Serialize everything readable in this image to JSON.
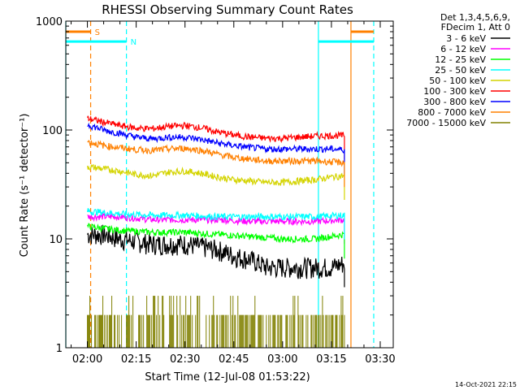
{
  "chart_data": {
    "type": "line",
    "title": "RHESSI Observing Summary Count Rates",
    "xlabel": "Start Time (12-Jul-08 01:53:22)",
    "ylabel": "Count Rate (s⁻¹ detector⁻¹)",
    "y_scale": "log",
    "ylim": [
      1,
      1000
    ],
    "y_ticks": [
      {
        "value": 1,
        "label": "1"
      },
      {
        "value": 10,
        "label": "10"
      },
      {
        "value": 100,
        "label": "100"
      },
      {
        "value": 1000,
        "label": "1000"
      }
    ],
    "xlim": [
      "01:53:22",
      "03:34:00"
    ],
    "x_ticks": [
      "02:00",
      "02:15",
      "02:30",
      "02:45",
      "03:00",
      "03:15",
      "03:30"
    ],
    "legend": {
      "header": [
        "Det 1,3,4,5,6,9,",
        "FDecim 1, Att 0"
      ],
      "placement": "top-right outside"
    },
    "timestamp": "14-Oct-2021 22:15",
    "series": [
      {
        "name": "3 - 6 keV",
        "color": "#000000",
        "x": [
          "02:00",
          "02:05",
          "02:10",
          "02:15",
          "02:20",
          "02:25",
          "02:30",
          "02:35",
          "02:40",
          "02:45",
          "02:50",
          "02:55",
          "03:00",
          "03:05",
          "03:10",
          "03:15",
          "03:19"
        ],
        "values": [
          11,
          11,
          10,
          9.5,
          9,
          9,
          9,
          8.5,
          8,
          7,
          6.5,
          5.5,
          5.5,
          5.5,
          5.5,
          5.5,
          6
        ]
      },
      {
        "name": "6 - 12 keV",
        "color": "#ff00ff",
        "x": [
          "02:00",
          "02:10",
          "02:20",
          "02:30",
          "02:40",
          "02:50",
          "03:00",
          "03:10",
          "03:19"
        ],
        "values": [
          16,
          16,
          15,
          15,
          15,
          14.5,
          14.5,
          14.5,
          15
        ]
      },
      {
        "name": "12 - 25 keV",
        "color": "#00ff00",
        "x": [
          "02:00",
          "02:10",
          "02:20",
          "02:30",
          "02:40",
          "02:50",
          "03:00",
          "03:10",
          "03:19"
        ],
        "values": [
          13,
          12,
          11.5,
          11.5,
          11,
          10.5,
          10,
          10,
          11
        ]
      },
      {
        "name": "25 - 50 keV",
        "color": "#00ffff",
        "x": [
          "02:00",
          "02:10",
          "02:20",
          "02:30",
          "02:40",
          "02:50",
          "03:00",
          "03:10",
          "03:19"
        ],
        "values": [
          18,
          17,
          16.5,
          16.5,
          16,
          16,
          16,
          16,
          16.5
        ]
      },
      {
        "name": "50 - 100 keV",
        "color": "#d4d400",
        "x": [
          "02:00",
          "02:05",
          "02:10",
          "02:15",
          "02:20",
          "02:25",
          "02:30",
          "02:35",
          "02:40",
          "02:45",
          "02:50",
          "02:55",
          "03:00",
          "03:05",
          "03:10",
          "03:15",
          "03:19"
        ],
        "values": [
          46,
          44,
          42,
          39,
          38,
          41,
          42,
          40,
          37,
          35,
          34,
          33,
          33,
          34,
          35,
          37,
          38
        ]
      },
      {
        "name": "100 - 300 keV",
        "color": "#ff0000",
        "x": [
          "02:00",
          "02:05",
          "02:10",
          "02:15",
          "02:20",
          "02:25",
          "02:30",
          "02:35",
          "02:40",
          "02:45",
          "02:50",
          "02:55",
          "03:00",
          "03:05",
          "03:10",
          "03:15",
          "03:19"
        ],
        "values": [
          128,
          118,
          110,
          104,
          103,
          108,
          110,
          105,
          96,
          90,
          86,
          84,
          84,
          86,
          88,
          89,
          89
        ]
      },
      {
        "name": "300 - 800 keV",
        "color": "#0000ff",
        "x": [
          "02:00",
          "02:05",
          "02:10",
          "02:15",
          "02:20",
          "02:25",
          "02:30",
          "02:35",
          "02:40",
          "02:45",
          "02:50",
          "02:55",
          "03:00",
          "03:05",
          "03:10",
          "03:15",
          "03:19"
        ],
        "values": [
          112,
          100,
          93,
          86,
          83,
          86,
          86,
          82,
          76,
          72,
          69,
          67,
          67,
          67,
          67,
          67,
          66
        ]
      },
      {
        "name": "800 - 7000 keV",
        "color": "#ff8000",
        "x": [
          "02:00",
          "02:05",
          "02:10",
          "02:15",
          "02:20",
          "02:25",
          "02:30",
          "02:35",
          "02:40",
          "02:45",
          "02:50",
          "02:55",
          "03:00",
          "03:05",
          "03:10",
          "03:15",
          "03:19"
        ],
        "values": [
          78,
          72,
          69,
          66,
          65,
          67,
          68,
          65,
          60,
          56,
          54,
          52,
          52,
          52,
          52,
          51,
          50
        ]
      },
      {
        "name": "7000 - 15000 keV",
        "color": "#808000",
        "x": [
          "02:00",
          "02:15",
          "02:25",
          "02:30",
          "02:35",
          "02:45",
          "03:00",
          "03:15",
          "03:19"
        ],
        "values": [
          1.5,
          1.5,
          2.5,
          2.5,
          2,
          1.5,
          1.5,
          1.5,
          1.5
        ]
      }
    ],
    "markers": [
      {
        "label": "S",
        "color": "#ff8000",
        "start": "01:53:22",
        "end": "02:01:00",
        "level": 800
      },
      {
        "label": "",
        "color": "#ff8000",
        "start": "03:21:00",
        "end": "03:28:00",
        "level": 800
      },
      {
        "label": "N",
        "color": "#00ffff",
        "start": "01:53:22",
        "end": "02:12:00",
        "level": 650
      },
      {
        "label": "",
        "color": "#00ffff",
        "start": "03:11:00",
        "end": "03:28:00",
        "level": 650
      }
    ],
    "vlines": [
      {
        "time": "02:01:00",
        "color": "#ff8000",
        "style": "dashed"
      },
      {
        "time": "03:21:00",
        "color": "#ff8000",
        "style": "solid"
      },
      {
        "time": "02:12:00",
        "color": "#00ffff",
        "style": "dashed"
      },
      {
        "time": "03:11:00",
        "color": "#00ffff",
        "style": "solid"
      },
      {
        "time": "03:28:00",
        "color": "#00ffff",
        "style": "dashed"
      },
      {
        "time": "01:53:22",
        "color": "#00ffff",
        "style": "solid"
      }
    ],
    "grid": false
  }
}
